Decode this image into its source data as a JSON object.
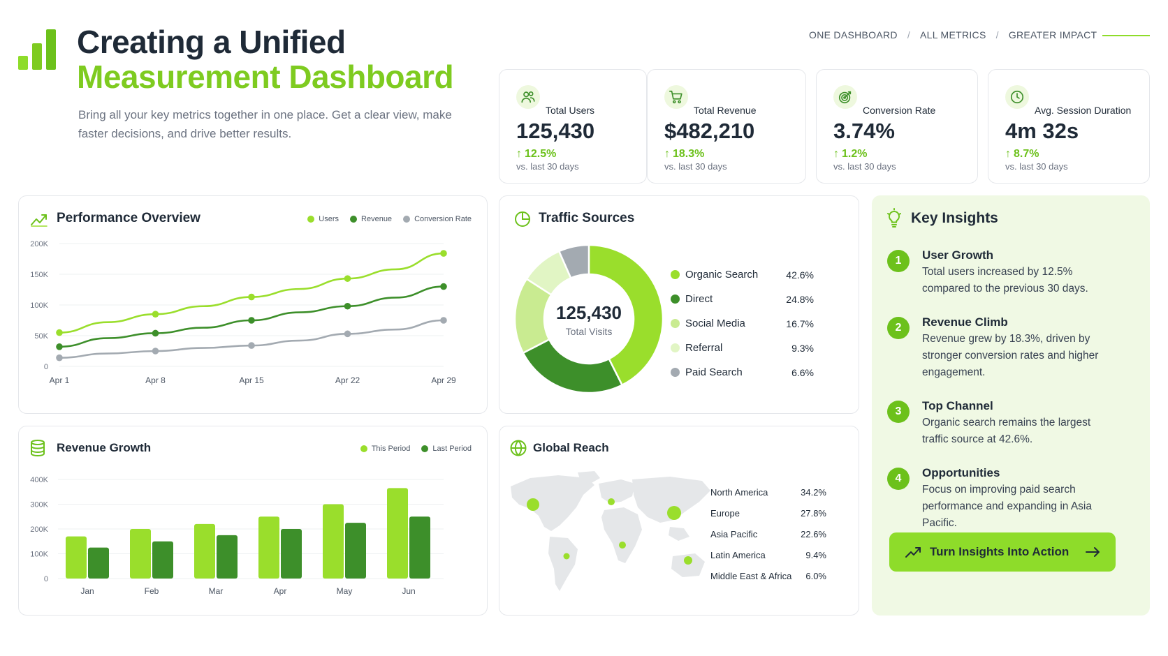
{
  "header": {
    "title_line1": "Creating a Unified",
    "title_line2": "Measurement Dashboard",
    "subtitle": "Bring all your key metrics together in one place. Get a clear view, make faster decisions, and drive better results.",
    "breadcrumbs": [
      "ONE DASHBOARD",
      "ALL METRICS",
      "GREATER IMPACT"
    ]
  },
  "kpis": [
    {
      "label": "Total Users",
      "value": "125,430",
      "delta": "12.5%",
      "period": "vs. last 30 days",
      "icon": "users-icon"
    },
    {
      "label": "Total Revenue",
      "value": "$482,210",
      "delta": "18.3%",
      "period": "vs. last 30 days",
      "icon": "cart-icon"
    },
    {
      "label": "Conversion Rate",
      "value": "3.74%",
      "delta": "1.2%",
      "period": "vs. last 30 days",
      "icon": "target-icon"
    },
    {
      "label": "Avg. Session Duration",
      "value": "4m 32s",
      "delta": "8.7%",
      "period": "vs. last 30 days",
      "icon": "clock-icon"
    }
  ],
  "colors": {
    "lime": "#9ade2c",
    "green": "#3d8f2a",
    "gray": "#a3aab1",
    "accent": "#7ecb20"
  },
  "performance": {
    "title": "Performance Overview",
    "chart_data": {
      "type": "line",
      "x": [
        "Apr 1",
        "Apr 4",
        "Apr 8",
        "Apr 11",
        "Apr 15",
        "Apr 18",
        "Apr 22",
        "Apr 25",
        "Apr 29"
      ],
      "xticks": [
        "Apr 1",
        "Apr 8",
        "Apr 15",
        "Apr 22",
        "Apr 29"
      ],
      "yticks": [
        "0",
        "50K",
        "100K",
        "150K",
        "200K"
      ],
      "ylim": [
        0,
        200000
      ],
      "grid": true,
      "legend": "top-right",
      "series": [
        {
          "name": "Users",
          "color": "#9ade2c",
          "values": [
            55000,
            72000,
            85000,
            98000,
            113000,
            126000,
            143000,
            158000,
            184000
          ]
        },
        {
          "name": "Revenue",
          "color": "#3d8f2a",
          "values": [
            32000,
            46000,
            54000,
            63000,
            75000,
            88000,
            98000,
            112000,
            130000
          ]
        },
        {
          "name": "Conversion Rate",
          "color": "#a3aab1",
          "values": [
            14000,
            21000,
            25000,
            30000,
            34000,
            42000,
            53000,
            60000,
            75000
          ]
        }
      ]
    }
  },
  "revenue": {
    "title": "Revenue Growth",
    "chart_data": {
      "type": "bar",
      "categories": [
        "Jan",
        "Feb",
        "Mar",
        "Apr",
        "May",
        "Jun"
      ],
      "yticks": [
        "0",
        "100K",
        "200K",
        "300K",
        "400K"
      ],
      "ylim": [
        0,
        400000
      ],
      "grid": true,
      "legend": "top-right",
      "series": [
        {
          "name": "This Period",
          "color": "#9ade2c",
          "values": [
            170000,
            200000,
            220000,
            250000,
            300000,
            365000
          ]
        },
        {
          "name": "Last Period",
          "color": "#3d8f2a",
          "values": [
            125000,
            150000,
            175000,
            200000,
            225000,
            250000
          ]
        }
      ]
    }
  },
  "traffic": {
    "title": "Traffic Sources",
    "center_value": "125,430",
    "center_label": "Total Visits",
    "chart_data": {
      "type": "pie",
      "slices": [
        {
          "name": "Organic Search",
          "value": 42.6,
          "pct": "42.6%",
          "color": "#9ade2c"
        },
        {
          "name": "Direct",
          "value": 24.8,
          "pct": "24.8%",
          "color": "#3d8f2a"
        },
        {
          "name": "Social Media",
          "value": 16.7,
          "pct": "16.7%",
          "color": "#c9eb91"
        },
        {
          "name": "Referral",
          "value": 9.3,
          "pct": "9.3%",
          "color": "#e1f5c4"
        },
        {
          "name": "Paid Search",
          "value": 6.6,
          "pct": "6.6%",
          "color": "#a3aab1"
        }
      ]
    }
  },
  "reach": {
    "title": "Global Reach",
    "regions": [
      {
        "name": "North America",
        "pct": "34.2%"
      },
      {
        "name": "Europe",
        "pct": "27.8%"
      },
      {
        "name": "Asia Pacific",
        "pct": "22.6%"
      },
      {
        "name": "Latin America",
        "pct": "9.4%"
      },
      {
        "name": "Middle East & Africa",
        "pct": "6.0%"
      }
    ]
  },
  "insights": {
    "title": "Key Insights",
    "items": [
      {
        "num": "1",
        "title": "User Growth",
        "text": "Total users increased by 12.5% compared to the previous 30 days."
      },
      {
        "num": "2",
        "title": "Revenue Climb",
        "text": "Revenue grew by 18.3%, driven by stronger conversion rates and higher engagement."
      },
      {
        "num": "3",
        "title": "Top Channel",
        "text": "Organic search remains the largest traffic source at 42.6%."
      },
      {
        "num": "4",
        "title": "Opportunities",
        "text": "Focus on improving paid search performance and expanding in Asia Pacific."
      }
    ],
    "cta_label": "Turn Insights Into Action"
  }
}
